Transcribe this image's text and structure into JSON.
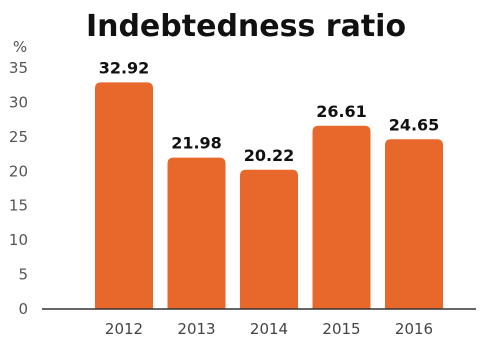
{
  "chart_data": {
    "type": "bar",
    "title": "Indebtedness ratio",
    "unit_label": "%",
    "categories": [
      "2012",
      "2013",
      "2014",
      "2015",
      "2016"
    ],
    "values": [
      32.92,
      21.98,
      20.22,
      26.61,
      24.65
    ],
    "value_labels": [
      "32.92",
      "21.98",
      "20.22",
      "26.61",
      "24.65"
    ],
    "ylim": [
      0,
      35
    ],
    "yticks": [
      "0",
      "5",
      "10",
      "15",
      "20",
      "25",
      "30",
      "35"
    ],
    "grid": false,
    "bar_color": "#E8672A"
  }
}
